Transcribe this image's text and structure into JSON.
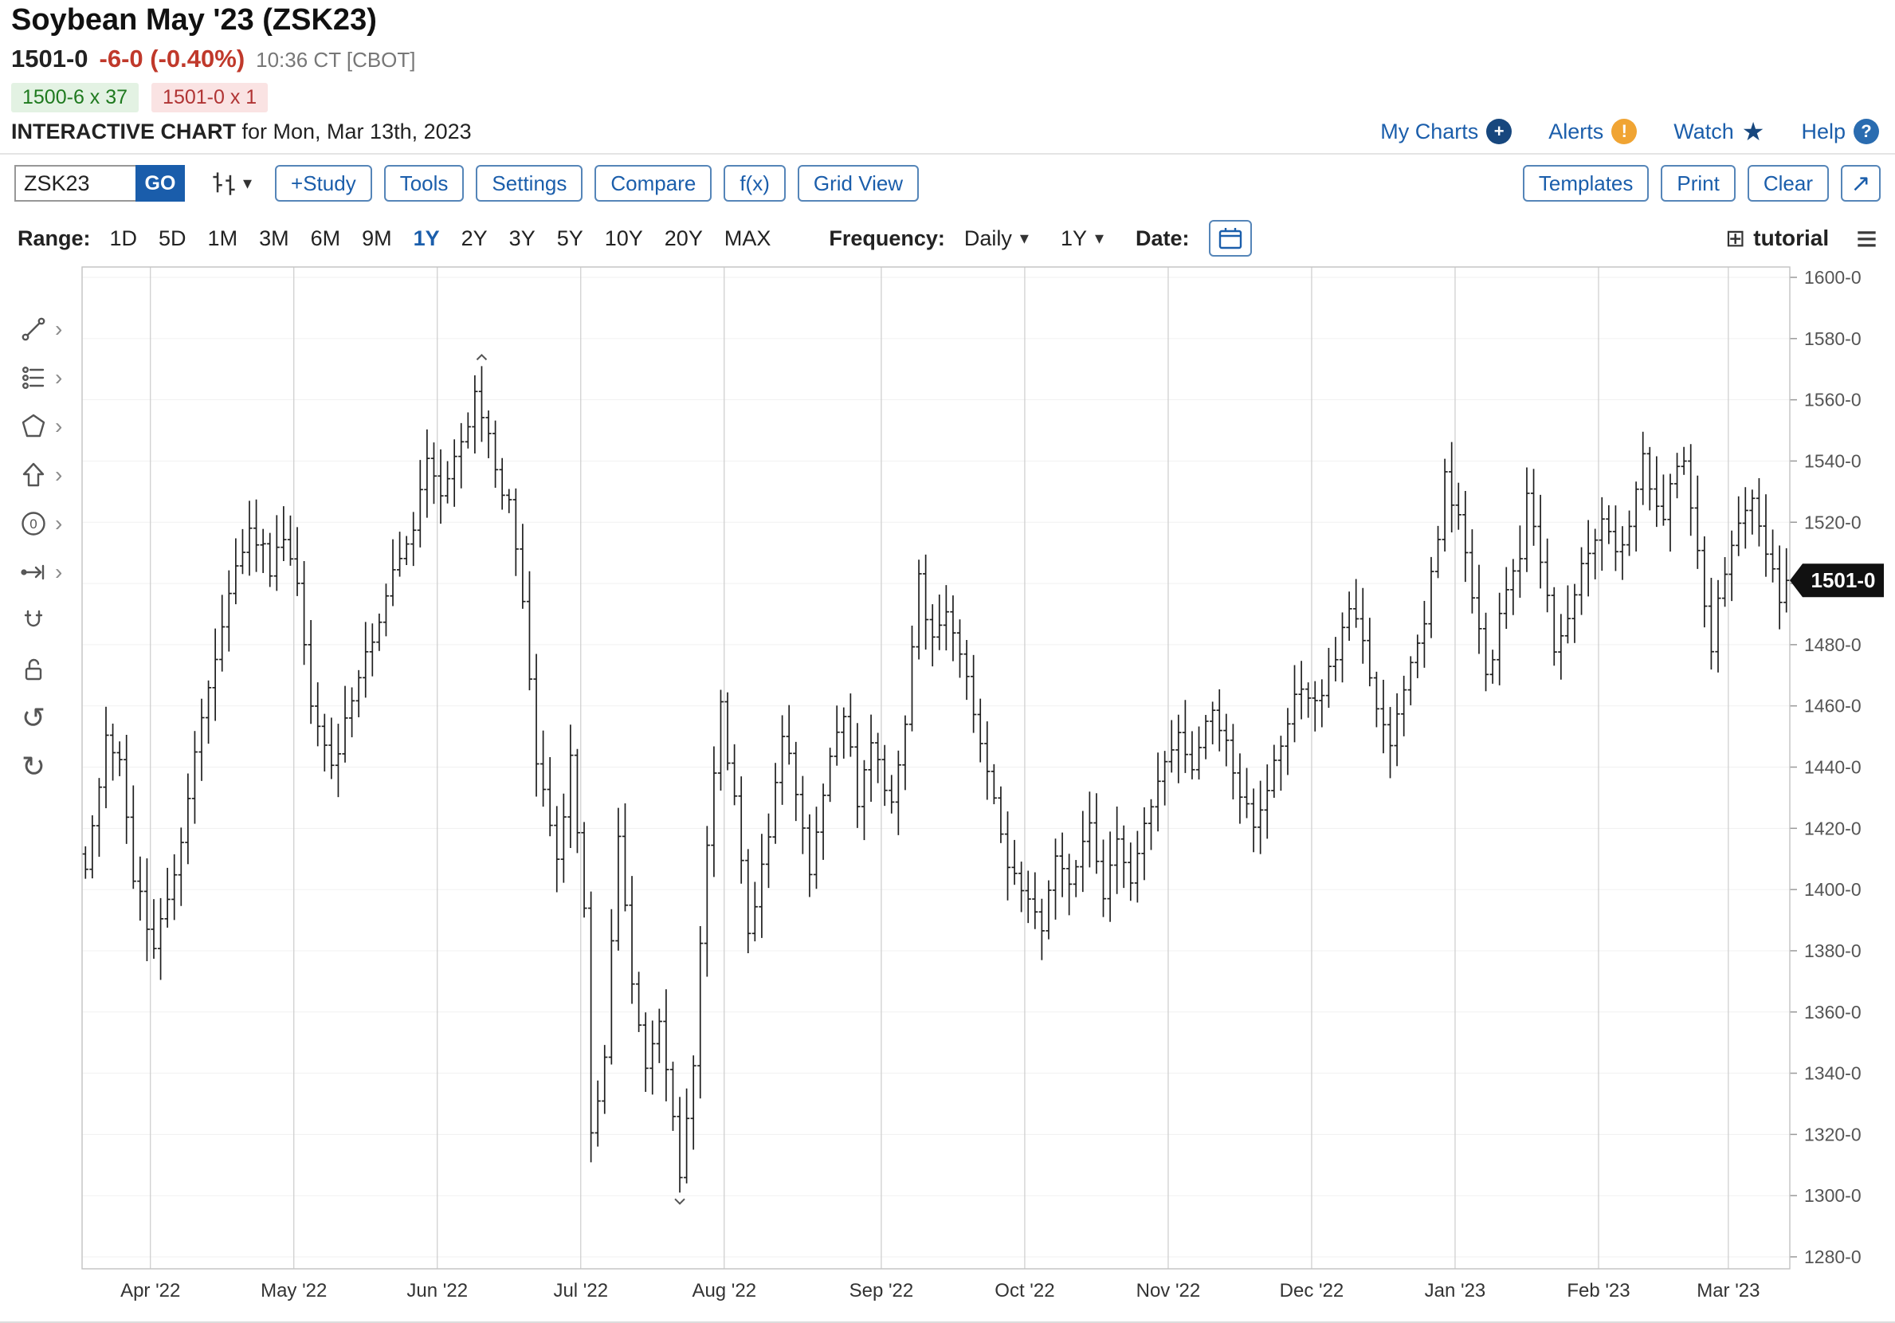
{
  "header": {
    "title": "Soybean May '23 (ZSK23)",
    "price": "1501-0",
    "change": "-6-0 (-0.40%)",
    "time": "10:36 CT [CBOT]",
    "bid": "1500-6 x 37",
    "ask": "1501-0 x 1",
    "chart_label": "INTERACTIVE CHART",
    "chart_date": "for Mon, Mar 13th, 2023",
    "links": {
      "my_charts": "My Charts",
      "alerts": "Alerts",
      "watch": "Watch",
      "help": "Help"
    }
  },
  "toolbar": {
    "symbol_value": "ZSK23",
    "go_label": "GO",
    "buttons": [
      "+Study",
      "Tools",
      "Settings",
      "Compare",
      "f(x)",
      "Grid View"
    ],
    "templates_label": "Templates",
    "print_label": "Print",
    "clear_label": "Clear"
  },
  "range_bar": {
    "range_label": "Range:",
    "ranges": [
      "1D",
      "5D",
      "1M",
      "3M",
      "6M",
      "9M",
      "1Y",
      "2Y",
      "3Y",
      "5Y",
      "10Y",
      "20Y",
      "MAX"
    ],
    "active_range": "1Y",
    "frequency_label": "Frequency:",
    "frequency_value": "Daily",
    "period_value": "1Y",
    "date_label": "Date:",
    "tutorial_label": "tutorial"
  },
  "icons": {
    "plus": "+",
    "exclamation": "!",
    "question": "?",
    "star": "★",
    "caret_down": "▾",
    "chevron_right": "›",
    "expand": "↗",
    "grid": "⊞",
    "hamburger": "≡",
    "undo": "↺",
    "redo": "↻"
  },
  "colors": {
    "accent_blue": "#1b5eab",
    "go_blue": "#1a5dab",
    "bid_green": "#1f7a1f",
    "ask_red": "#b03434",
    "change_red": "#c0392b",
    "bar_color": "#1f1f1f",
    "grid_color": "#cccccc",
    "tag_bg": "#111111"
  },
  "chart_data": {
    "type": "ohlc",
    "title": "Soybean May '23 (ZSK23) — daily OHLC, 1 year",
    "y_axis": {
      "min": 1280,
      "max": 1600,
      "step": 20,
      "tick_suffix": "-0"
    },
    "x_labels": [
      "Apr '22",
      "May '22",
      "Jun '22",
      "Jul '22",
      "Aug '22",
      "Sep '22",
      "Oct '22",
      "Nov '22",
      "Dec '22",
      "Jan '23",
      "Feb '23",
      "Mar '23"
    ],
    "month_start_days": [
      10,
      31,
      52,
      73,
      94,
      117,
      138,
      159,
      180,
      201,
      222,
      241
    ],
    "num_days": 250,
    "last_price": 1501,
    "last_price_label": "1501-0",
    "high_marker": {
      "day": 58,
      "price": 1571
    },
    "low_marker": {
      "day": 87,
      "price": 1301
    },
    "close_anchors": [
      [
        0,
        1408
      ],
      [
        3,
        1448
      ],
      [
        5,
        1440
      ],
      [
        7,
        1405
      ],
      [
        10,
        1382
      ],
      [
        12,
        1396
      ],
      [
        14,
        1418
      ],
      [
        16,
        1445
      ],
      [
        18,
        1468
      ],
      [
        20,
        1488
      ],
      [
        24,
        1520
      ],
      [
        27,
        1505
      ],
      [
        29,
        1515
      ],
      [
        31,
        1498
      ],
      [
        33,
        1462
      ],
      [
        36,
        1438
      ],
      [
        38,
        1455
      ],
      [
        40,
        1470
      ],
      [
        43,
        1490
      ],
      [
        45,
        1505
      ],
      [
        48,
        1518
      ],
      [
        50,
        1542
      ],
      [
        52,
        1528
      ],
      [
        55,
        1545
      ],
      [
        57,
        1562
      ],
      [
        60,
        1538
      ],
      [
        62,
        1525
      ],
      [
        64,
        1492
      ],
      [
        66,
        1442
      ],
      [
        69,
        1408
      ],
      [
        71,
        1445
      ],
      [
        73,
        1392
      ],
      [
        74,
        1318
      ],
      [
        76,
        1345
      ],
      [
        78,
        1418
      ],
      [
        80,
        1372
      ],
      [
        82,
        1340
      ],
      [
        84,
        1358
      ],
      [
        87,
        1306
      ],
      [
        89,
        1345
      ],
      [
        91,
        1415
      ],
      [
        93,
        1460
      ],
      [
        95,
        1428
      ],
      [
        97,
        1385
      ],
      [
        100,
        1420
      ],
      [
        102,
        1452
      ],
      [
        104,
        1432
      ],
      [
        106,
        1405
      ],
      [
        109,
        1445
      ],
      [
        111,
        1458
      ],
      [
        113,
        1430
      ],
      [
        115,
        1448
      ],
      [
        118,
        1428
      ],
      [
        120,
        1455
      ],
      [
        122,
        1502
      ],
      [
        124,
        1480
      ],
      [
        126,
        1490
      ],
      [
        129,
        1468
      ],
      [
        131,
        1445
      ],
      [
        133,
        1428
      ],
      [
        135,
        1408
      ],
      [
        138,
        1395
      ],
      [
        140,
        1385
      ],
      [
        142,
        1412
      ],
      [
        144,
        1400
      ],
      [
        147,
        1420
      ],
      [
        149,
        1395
      ],
      [
        151,
        1415
      ],
      [
        153,
        1405
      ],
      [
        156,
        1428
      ],
      [
        158,
        1440
      ],
      [
        160,
        1452
      ],
      [
        162,
        1440
      ],
      [
        165,
        1458
      ],
      [
        167,
        1448
      ],
      [
        169,
        1432
      ],
      [
        171,
        1420
      ],
      [
        174,
        1440
      ],
      [
        176,
        1455
      ],
      [
        178,
        1468
      ],
      [
        180,
        1460
      ],
      [
        183,
        1478
      ],
      [
        185,
        1492
      ],
      [
        187,
        1482
      ],
      [
        189,
        1458
      ],
      [
        191,
        1445
      ],
      [
        193,
        1468
      ],
      [
        196,
        1488
      ],
      [
        198,
        1515
      ],
      [
        199,
        1535
      ],
      [
        201,
        1522
      ],
      [
        203,
        1498
      ],
      [
        205,
        1468
      ],
      [
        207,
        1488
      ],
      [
        210,
        1510
      ],
      [
        211,
        1532
      ],
      [
        213,
        1508
      ],
      [
        215,
        1480
      ],
      [
        218,
        1495
      ],
      [
        220,
        1512
      ],
      [
        222,
        1520
      ],
      [
        224,
        1508
      ],
      [
        227,
        1528
      ],
      [
        228,
        1540
      ],
      [
        231,
        1518
      ],
      [
        232,
        1530
      ],
      [
        234,
        1542
      ],
      [
        236,
        1510
      ],
      [
        238,
        1480
      ],
      [
        240,
        1505
      ],
      [
        242,
        1520
      ],
      [
        244,
        1530
      ],
      [
        246,
        1512
      ],
      [
        248,
        1495
      ],
      [
        249,
        1501
      ]
    ]
  }
}
